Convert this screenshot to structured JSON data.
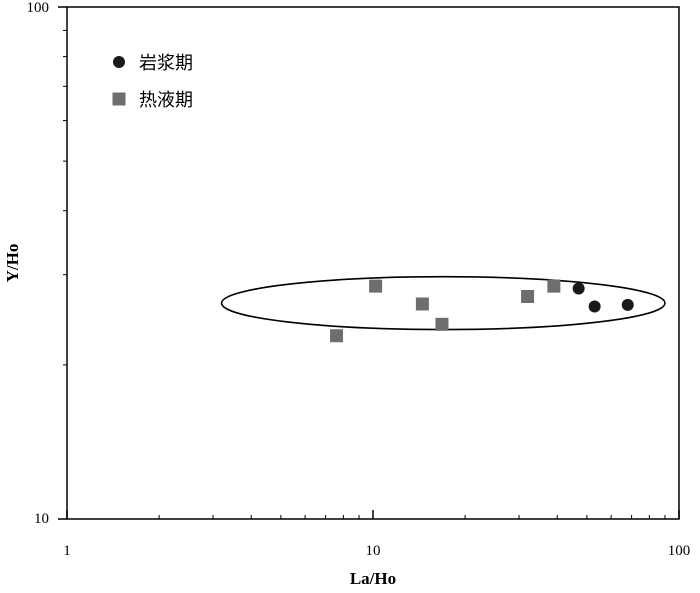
{
  "chart_data": {
    "type": "scatter",
    "x_scale": "log",
    "y_scale": "log",
    "xlim": [
      1,
      100
    ],
    "ylim": [
      10,
      100
    ],
    "x_ticks": [
      "1",
      "10",
      "100"
    ],
    "y_ticks": [
      "10",
      "100"
    ],
    "xlabel": "La/Ho",
    "ylabel": "Y/Ho",
    "grid": false,
    "legend_position": "top-left",
    "series": [
      {
        "name": "岩浆期",
        "marker": "circle",
        "color": "#1a1a1a",
        "points": [
          {
            "x": 47,
            "y": 28.2
          },
          {
            "x": 53,
            "y": 26.0
          },
          {
            "x": 68,
            "y": 26.2
          }
        ]
      },
      {
        "name": "热液期",
        "marker": "square",
        "color": "#6e6e6e",
        "points": [
          {
            "x": 7.6,
            "y": 22.8
          },
          {
            "x": 10.2,
            "y": 28.5
          },
          {
            "x": 14.5,
            "y": 26.3
          },
          {
            "x": 16.8,
            "y": 24.0
          },
          {
            "x": 32.0,
            "y": 27.2
          },
          {
            "x": 39.0,
            "y": 28.5
          }
        ]
      }
    ],
    "annotations": [
      {
        "shape": "ellipse",
        "x_range": [
          3.2,
          90
        ],
        "y_range": [
          23.5,
          29.8
        ],
        "y_center": 26.4
      }
    ]
  }
}
